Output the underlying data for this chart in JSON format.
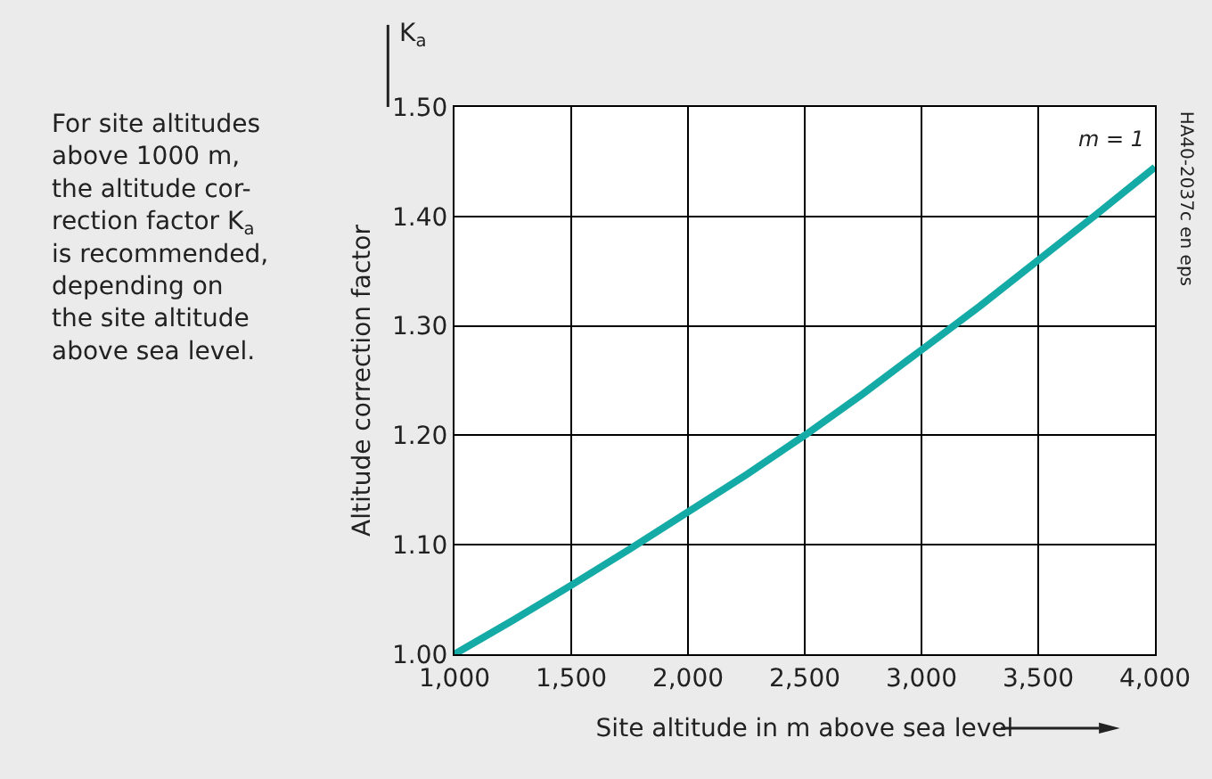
{
  "chart_data": {
    "type": "line",
    "xlabel": "Site altitude in m above sea level",
    "ylabel": "Altitude correction factor",
    "x": [
      1000,
      1250,
      1500,
      1750,
      2000,
      2250,
      2500,
      2750,
      3000,
      3250,
      3500,
      3750,
      4000
    ],
    "series": [
      {
        "color": "#14aaa5",
        "values": [
          1.0,
          1.031,
          1.063,
          1.096,
          1.13,
          1.164,
          1.2,
          1.238,
          1.278,
          1.318,
          1.36,
          1.402,
          1.445
        ]
      }
    ],
    "xlim": [
      1000,
      4000
    ],
    "xticks": [
      {
        "value": 1000,
        "label": "1,000"
      },
      {
        "value": 1500,
        "label": "1,500"
      },
      {
        "value": 2000,
        "label": "2,000"
      },
      {
        "value": 2500,
        "label": "2,500"
      },
      {
        "value": 3000,
        "label": "3,000"
      },
      {
        "value": 3500,
        "label": "3,500"
      },
      {
        "value": 4000,
        "label": "4,000"
      }
    ],
    "ylim": [
      1.0,
      1.5
    ],
    "yticks": [
      {
        "value": 1.0,
        "label": "1.00"
      },
      {
        "value": 1.1,
        "label": "1.10"
      },
      {
        "value": 1.2,
        "label": "1.20"
      },
      {
        "value": 1.3,
        "label": "1.30"
      },
      {
        "value": 1.4,
        "label": "1.40"
      },
      {
        "value": 1.5,
        "label": "1.50"
      }
    ],
    "grid": true,
    "marker": "none",
    "line_style": "solid",
    "annotations": [
      "For site altitudes\nabove 1000 m,\nthe altitude cor-\nrection factor K$_{a}$\nis recommended,\ndepending on\nthe site altitude\nabove sea level.",
      "K$_{a}$",
      "m = 1",
      "HA40-2037c en eps"
    ]
  }
}
